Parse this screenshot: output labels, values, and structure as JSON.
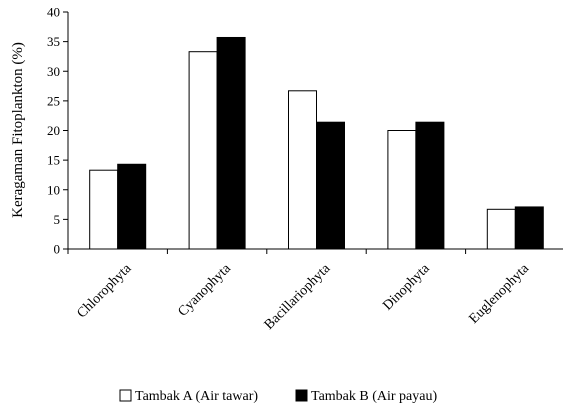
{
  "chart_data": {
    "type": "bar",
    "title": "",
    "xlabel": "",
    "ylabel": "Keragaman Fitoplankton (%)",
    "ylim": [
      0,
      40
    ],
    "yticks": [
      0,
      5,
      10,
      15,
      20,
      25,
      30,
      35,
      40
    ],
    "categories": [
      "Chlorophyta",
      "Cyanophyta",
      "Bacillariophyta",
      "Dinophyta",
      "Euglenophyta"
    ],
    "series": [
      {
        "name": "Tambak A (Air tawar)",
        "color": "#ffffff",
        "values": [
          13.3,
          33.3,
          26.7,
          20.0,
          6.7
        ]
      },
      {
        "name": "Tambak B (Air payau)",
        "color": "#000000",
        "values": [
          14.3,
          35.7,
          21.4,
          21.4,
          7.1
        ]
      }
    ],
    "grid": false,
    "legend_position": "bottom"
  }
}
